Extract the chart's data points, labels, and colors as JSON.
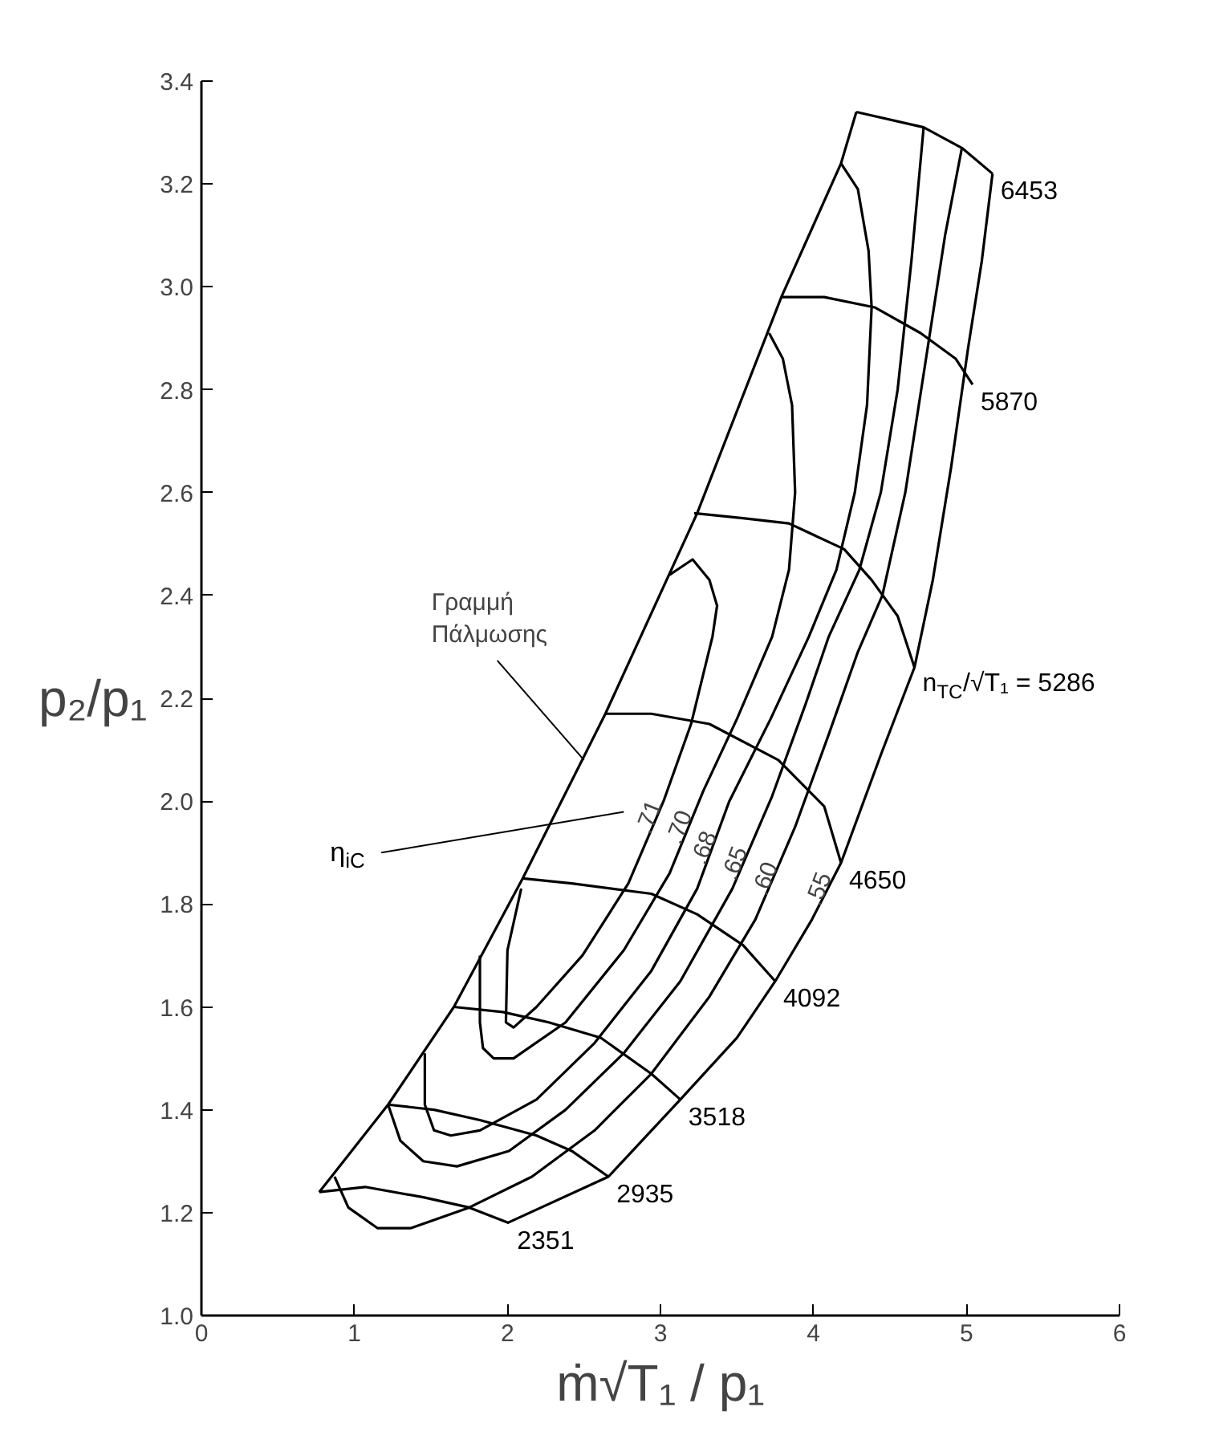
{
  "chart_data": {
    "type": "line",
    "xlabel": "ṁ√T₁ / p₁",
    "ylabel": "p₂/p₁",
    "xlim": [
      0,
      6
    ],
    "ylim": [
      1.0,
      3.4
    ],
    "xticks": [
      0,
      1,
      2,
      3,
      4,
      5,
      6
    ],
    "yticks": [
      {
        "value": 1.0,
        "label": "1.0"
      },
      {
        "value": 1.2,
        "label": "1.2"
      },
      {
        "value": 1.4,
        "label": "1.4"
      },
      {
        "value": 1.6,
        "label": "1.6"
      },
      {
        "value": 1.8,
        "label": "1.8"
      },
      {
        "value": 2.0,
        "label": "2.0"
      },
      {
        "value": 2.2,
        "label": "2.2"
      },
      {
        "value": 2.4,
        "label": "2.4"
      },
      {
        "value": 2.6,
        "label": "2.6"
      },
      {
        "value": 2.8,
        "label": "2.8"
      },
      {
        "value": 3.0,
        "label": "3.0"
      },
      {
        "value": 3.2,
        "label": "3.2"
      },
      {
        "value": 3.4,
        "label": "3.4"
      }
    ],
    "series": [
      {
        "color": "#000000",
        "x": [
          0.77,
          1.22,
          1.65,
          2.1,
          2.64,
          3.24,
          3.79,
          4.18,
          4.28
        ],
        "values": [
          1.24,
          1.41,
          1.6,
          1.85,
          2.17,
          2.56,
          2.98,
          3.24,
          3.34
        ]
      },
      {
        "name": "2351",
        "color": "#000000",
        "x": [
          0.77,
          1.07,
          1.45,
          1.75,
          2.01
        ],
        "values": [
          1.24,
          1.25,
          1.23,
          1.21,
          1.18
        ]
      },
      {
        "name": "2935",
        "color": "#000000",
        "x": [
          1.22,
          1.52,
          1.82,
          2.19,
          2.42,
          2.66
        ],
        "values": [
          1.41,
          1.4,
          1.38,
          1.35,
          1.32,
          1.27
        ]
      },
      {
        "name": "3518",
        "color": "#000000",
        "x": [
          1.65,
          1.97,
          2.27,
          2.61,
          2.94,
          3.13
        ],
        "values": [
          1.6,
          1.59,
          1.57,
          1.54,
          1.47,
          1.42
        ]
      },
      {
        "name": "4092",
        "color": "#000000",
        "x": [
          2.1,
          2.42,
          2.94,
          3.24,
          3.54,
          3.75
        ],
        "values": [
          1.85,
          1.84,
          1.82,
          1.78,
          1.72,
          1.65
        ]
      },
      {
        "name": "4650",
        "color": "#000000",
        "x": [
          2.64,
          2.94,
          3.32,
          3.77,
          4.07,
          4.18
        ],
        "values": [
          2.17,
          2.17,
          2.15,
          2.08,
          1.99,
          1.88
        ]
      },
      {
        "name": "n$_{TC}$/√T₁ = 5286",
        "color": "#000000",
        "x": [
          3.22,
          3.54,
          3.84,
          4.2,
          4.38,
          4.55,
          4.66
        ],
        "values": [
          2.56,
          2.55,
          2.54,
          2.49,
          2.43,
          2.36,
          2.26
        ]
      },
      {
        "name": "5870",
        "color": "#000000",
        "x": [
          3.79,
          4.07,
          4.4,
          4.7,
          4.93,
          5.04
        ],
        "values": [
          2.98,
          2.98,
          2.96,
          2.91,
          2.86,
          2.81
        ]
      },
      {
        "name": "6453",
        "color": "#000000",
        "x": [
          4.28,
          4.72,
          4.97,
          5.17
        ],
        "values": [
          3.34,
          3.31,
          3.27,
          3.22
        ]
      },
      {
        "color": "#000000",
        "x": [
          2.0,
          2.66,
          3.13,
          3.5,
          3.75,
          3.99,
          4.18,
          4.44,
          4.66,
          4.78,
          4.9,
          5.01,
          5.1,
          5.17
        ],
        "values": [
          1.18,
          1.27,
          1.42,
          1.54,
          1.65,
          1.77,
          1.88,
          2.09,
          2.26,
          2.43,
          2.65,
          2.88,
          3.05,
          3.22
        ]
      },
      {
        "color": "#000000",
        "x": [
          0.87,
          0.96,
          1.15,
          1.37,
          1.75,
          2.16,
          2.57,
          2.94,
          3.32,
          3.62,
          3.88,
          4.1,
          4.29,
          4.45,
          4.6,
          4.73,
          4.86,
          4.97
        ],
        "values": [
          1.27,
          1.21,
          1.17,
          1.17,
          1.21,
          1.27,
          1.36,
          1.47,
          1.62,
          1.77,
          1.95,
          2.13,
          2.29,
          2.4,
          2.6,
          2.85,
          3.1,
          3.27
        ]
      },
      {
        "color": "#000000",
        "x": [
          1.22,
          1.3,
          1.45,
          1.67,
          2.01,
          2.38,
          2.76,
          3.13,
          3.47,
          3.73,
          3.95,
          4.1,
          4.3,
          4.44,
          4.55,
          4.64,
          4.72
        ],
        "values": [
          1.41,
          1.34,
          1.3,
          1.29,
          1.32,
          1.4,
          1.51,
          1.65,
          1.83,
          2.01,
          2.19,
          2.32,
          2.45,
          2.6,
          2.8,
          3.05,
          3.31
        ]
      },
      {
        "color": "#000000",
        "x": [
          1.46,
          1.46,
          1.52,
          1.63,
          1.82,
          2.19,
          2.57,
          2.94,
          3.24,
          3.45,
          3.72,
          3.97,
          4.15,
          4.27,
          4.35,
          4.38,
          4.36,
          4.29,
          4.18
        ],
        "values": [
          1.51,
          1.41,
          1.36,
          1.35,
          1.36,
          1.42,
          1.53,
          1.67,
          1.83,
          2.0,
          2.16,
          2.32,
          2.45,
          2.6,
          2.77,
          2.96,
          3.07,
          3.19,
          3.24
        ]
      },
      {
        "color": "#000000",
        "x": [
          1.82,
          1.82,
          1.84,
          1.91,
          2.04,
          2.38,
          2.76,
          3.06,
          3.28,
          3.5,
          3.73,
          3.84,
          3.88,
          3.86,
          3.8,
          3.71
        ],
        "values": [
          1.7,
          1.57,
          1.52,
          1.5,
          1.5,
          1.57,
          1.71,
          1.86,
          2.02,
          2.16,
          2.32,
          2.45,
          2.6,
          2.77,
          2.86,
          2.91
        ]
      },
      {
        "color": "#000000",
        "x": [
          2.09,
          2.0,
          1.99,
          2.04,
          2.19,
          2.49,
          2.79,
          3.02,
          3.2,
          3.34,
          3.37,
          3.32,
          3.21,
          3.11,
          3.06
        ],
        "values": [
          1.83,
          1.71,
          1.57,
          1.56,
          1.6,
          1.7,
          1.84,
          2.0,
          2.15,
          2.32,
          2.38,
          2.43,
          2.47,
          2.45,
          2.44
        ]
      }
    ],
    "annotations": [
      {
        "text": "Γραμμή\nΠάλμωσης",
        "x": 2.5,
        "y": 2.08
      },
      "η$_{iC}$",
      {
        "text": ".71",
        "x": 2.98,
        "y": 1.97
      },
      {
        "text": ".70",
        "x": 3.18,
        "y": 1.95
      },
      {
        "text": ".68",
        "x": 3.34,
        "y": 1.91
      },
      {
        "text": ".65",
        "x": 3.54,
        "y": 1.88
      },
      {
        "text": ".60",
        "x": 3.74,
        "y": 1.85
      },
      {
        "text": ".55",
        "x": 4.09,
        "y": 1.83
      }
    ]
  }
}
